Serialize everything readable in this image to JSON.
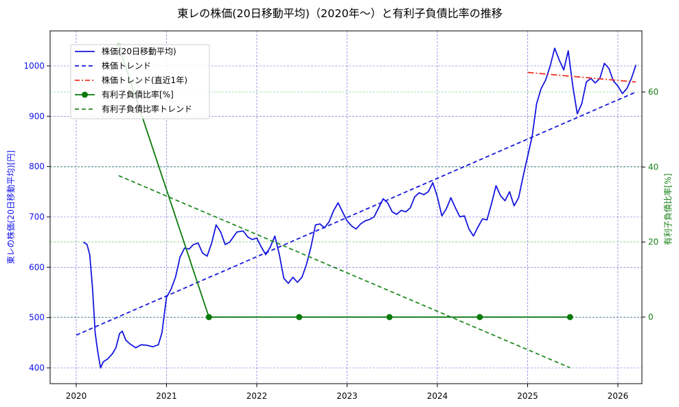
{
  "chart_data": {
    "type": "line",
    "title": "東レの株価(20日移動平均)（2020年～）と有利子負債比率の推移",
    "xlabel": "",
    "ylabel": "東レの株価(20日移動平均)[円]",
    "ylabel_right": "有利子負債比率[%]",
    "xlim": [
      2019.73,
      2026.27
    ],
    "ylim": [
      371,
      1067
    ],
    "ylim_right": [
      -17.7,
      75.9
    ],
    "x_ticks": [
      "2020",
      "2021",
      "2022",
      "2023",
      "2024",
      "2025",
      "2026"
    ],
    "y_ticks_left": [
      400,
      500,
      600,
      700,
      800,
      900,
      1000
    ],
    "y_ticks_right": [
      0,
      20,
      40,
      60
    ],
    "grid": true,
    "legend_position": "upper left",
    "legend": [
      "株価(20日移動平均)",
      "株価トレンド",
      "株価トレンド(直近1年)",
      "有利子負債比率[%]",
      "有利子負債比率トレンド"
    ],
    "series": [
      {
        "name": "株価(20日移動平均)",
        "axis": "left",
        "color": "#1515e0",
        "style": "solid",
        "points": [
          [
            2020.08,
            650
          ],
          [
            2020.12,
            645
          ],
          [
            2020.15,
            625
          ],
          [
            2020.18,
            560
          ],
          [
            2020.21,
            470
          ],
          [
            2020.24,
            430
          ],
          [
            2020.27,
            400
          ],
          [
            2020.3,
            412
          ],
          [
            2020.35,
            418
          ],
          [
            2020.4,
            428
          ],
          [
            2020.44,
            440
          ],
          [
            2020.48,
            468
          ],
          [
            2020.51,
            473
          ],
          [
            2020.55,
            455
          ],
          [
            2020.6,
            447
          ],
          [
            2020.66,
            440
          ],
          [
            2020.72,
            446
          ],
          [
            2020.78,
            445
          ],
          [
            2020.85,
            442
          ],
          [
            2020.91,
            446
          ],
          [
            2020.95,
            470
          ],
          [
            2021.0,
            540
          ],
          [
            2021.05,
            556
          ],
          [
            2021.1,
            580
          ],
          [
            2021.15,
            620
          ],
          [
            2021.2,
            638
          ],
          [
            2021.25,
            636
          ],
          [
            2021.3,
            645
          ],
          [
            2021.35,
            648
          ],
          [
            2021.4,
            628
          ],
          [
            2021.45,
            622
          ],
          [
            2021.5,
            648
          ],
          [
            2021.55,
            684
          ],
          [
            2021.6,
            670
          ],
          [
            2021.65,
            645
          ],
          [
            2021.7,
            650
          ],
          [
            2021.78,
            670
          ],
          [
            2021.85,
            672
          ],
          [
            2021.9,
            660
          ],
          [
            2021.95,
            655
          ],
          [
            2022.0,
            658
          ],
          [
            2022.05,
            640
          ],
          [
            2022.1,
            625
          ],
          [
            2022.15,
            640
          ],
          [
            2022.2,
            662
          ],
          [
            2022.25,
            625
          ],
          [
            2022.3,
            578
          ],
          [
            2022.35,
            568
          ],
          [
            2022.4,
            580
          ],
          [
            2022.45,
            570
          ],
          [
            2022.5,
            580
          ],
          [
            2022.55,
            605
          ],
          [
            2022.6,
            640
          ],
          [
            2022.65,
            684
          ],
          [
            2022.7,
            686
          ],
          [
            2022.75,
            678
          ],
          [
            2022.8,
            690
          ],
          [
            2022.85,
            712
          ],
          [
            2022.9,
            728
          ],
          [
            2022.95,
            710
          ],
          [
            2023.0,
            692
          ],
          [
            2023.05,
            682
          ],
          [
            2023.1,
            676
          ],
          [
            2023.15,
            686
          ],
          [
            2023.2,
            692
          ],
          [
            2023.25,
            695
          ],
          [
            2023.3,
            700
          ],
          [
            2023.35,
            718
          ],
          [
            2023.4,
            736
          ],
          [
            2023.45,
            728
          ],
          [
            2023.5,
            710
          ],
          [
            2023.55,
            705
          ],
          [
            2023.6,
            713
          ],
          [
            2023.65,
            710
          ],
          [
            2023.7,
            718
          ],
          [
            2023.75,
            740
          ],
          [
            2023.8,
            748
          ],
          [
            2023.85,
            744
          ],
          [
            2023.9,
            750
          ],
          [
            2023.95,
            768
          ],
          [
            2024.0,
            740
          ],
          [
            2024.05,
            702
          ],
          [
            2024.1,
            716
          ],
          [
            2024.15,
            738
          ],
          [
            2024.2,
            718
          ],
          [
            2024.25,
            700
          ],
          [
            2024.3,
            702
          ],
          [
            2024.35,
            676
          ],
          [
            2024.4,
            662
          ],
          [
            2024.45,
            680
          ],
          [
            2024.5,
            696
          ],
          [
            2024.55,
            694
          ],
          [
            2024.6,
            726
          ],
          [
            2024.65,
            762
          ],
          [
            2024.7,
            742
          ],
          [
            2024.75,
            732
          ],
          [
            2024.8,
            750
          ],
          [
            2024.85,
            722
          ],
          [
            2024.9,
            738
          ],
          [
            2024.95,
            780
          ],
          [
            2025.0,
            820
          ],
          [
            2025.05,
            860
          ],
          [
            2025.1,
            925
          ],
          [
            2025.15,
            955
          ],
          [
            2025.2,
            972
          ],
          [
            2025.25,
            1000
          ],
          [
            2025.3,
            1035
          ],
          [
            2025.35,
            1012
          ],
          [
            2025.4,
            992
          ],
          [
            2025.45,
            1030
          ],
          [
            2025.5,
            960
          ],
          [
            2025.55,
            905
          ],
          [
            2025.6,
            925
          ],
          [
            2025.65,
            968
          ],
          [
            2025.7,
            975
          ],
          [
            2025.75,
            966
          ],
          [
            2025.8,
            975
          ],
          [
            2025.85,
            1005
          ],
          [
            2025.9,
            995
          ],
          [
            2025.95,
            970
          ],
          [
            2026.0,
            960
          ],
          [
            2026.05,
            945
          ],
          [
            2026.1,
            955
          ],
          [
            2026.15,
            975
          ],
          [
            2026.2,
            1002
          ]
        ]
      },
      {
        "name": "株価トレンド",
        "axis": "left",
        "color": "#1515e0",
        "style": "dashed",
        "points": [
          [
            2020.0,
            465
          ],
          [
            2026.2,
            948
          ]
        ]
      },
      {
        "name": "株価トレンド(直近1年)",
        "axis": "left",
        "color": "#ee3322",
        "style": "dashdot",
        "points": [
          [
            2025.0,
            987
          ],
          [
            2026.2,
            968
          ]
        ]
      },
      {
        "name": "有利子負債比率[%]",
        "axis": "right",
        "color": "#0a7a0a",
        "style": "solid-markers",
        "points": [
          [
            2020.47,
            72.3
          ],
          [
            2021.47,
            0
          ],
          [
            2022.47,
            0
          ],
          [
            2023.47,
            0
          ],
          [
            2024.47,
            0
          ],
          [
            2025.47,
            0
          ]
        ]
      },
      {
        "name": "有利子負債比率トレンド",
        "axis": "right",
        "color": "#228B22",
        "style": "dashed",
        "points": [
          [
            2020.47,
            37.7
          ],
          [
            2025.47,
            -13.5
          ]
        ]
      }
    ]
  },
  "figure": {
    "title": "東レの株価(20日移動平均)（2020年～）と有利子負債比率の推移",
    "ylabel_left": "東レの株価(20日移動平均)[円]",
    "ylabel_right": "有利子負債比率[%]",
    "x_ticks": [
      "2020",
      "2021",
      "2022",
      "2023",
      "2024",
      "2025",
      "2026"
    ],
    "y_ticks_left": [
      "400",
      "500",
      "600",
      "700",
      "800",
      "900",
      "1000"
    ],
    "y_ticks_right": [
      "0",
      "20",
      "40",
      "60"
    ],
    "legend": [
      {
        "label": "株価(20日移動平均)",
        "color": "#1515e0",
        "style": "solid"
      },
      {
        "label": "株価トレンド",
        "color": "#1515e0",
        "style": "dashed"
      },
      {
        "label": "株価トレンド(直近1年)",
        "color": "#ee3322",
        "style": "dashdot"
      },
      {
        "label": "有利子負債比率[%]",
        "color": "#0a7a0a",
        "style": "marker"
      },
      {
        "label": "有利子負債比率トレンド",
        "color": "#228B22",
        "style": "dashed"
      }
    ],
    "colors": {
      "left_axis": "#1010ee",
      "right_axis": "#188018",
      "grid_blue": "#3333cc",
      "grid_green": "#33aa33"
    }
  }
}
